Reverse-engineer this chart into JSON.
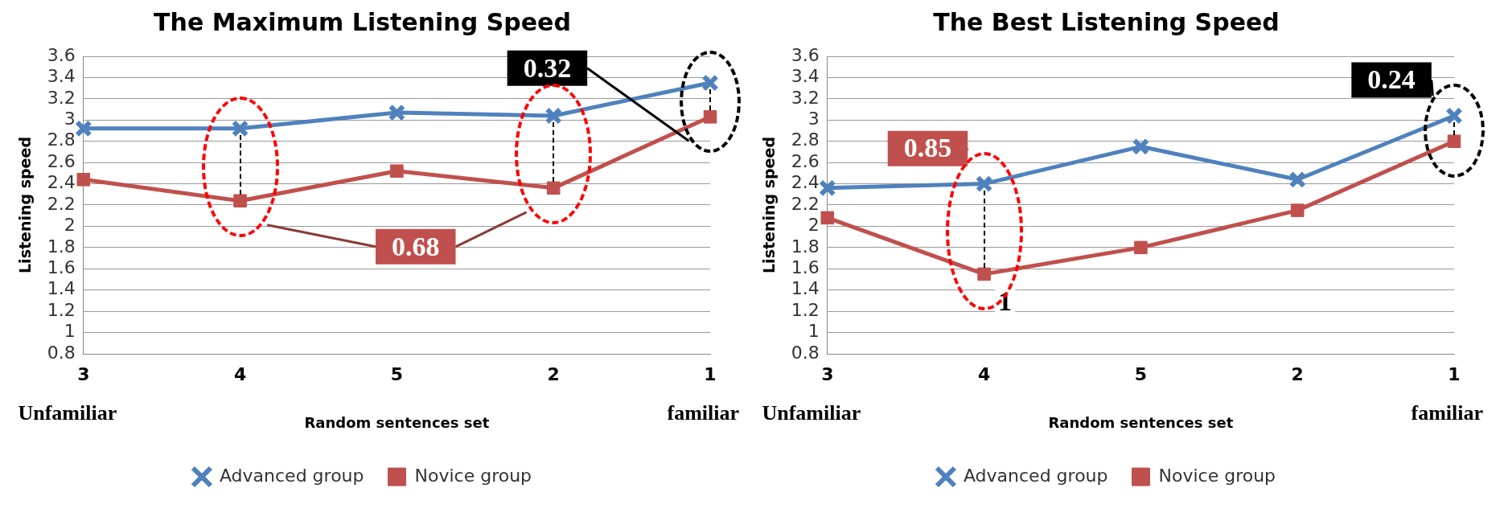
{
  "chart_data": [
    {
      "type": "line",
      "title": "The Maximum Listening Speed",
      "xlabel": "Random sentences set",
      "ylabel": "Listening speed",
      "categories": [
        "3",
        "4",
        "5",
        "2",
        "1"
      ],
      "series": [
        {
          "name": "Advanced group",
          "color": "#4f81bd",
          "marker": "cross",
          "values": [
            2.92,
            2.92,
            3.07,
            3.04,
            3.35
          ]
        },
        {
          "name": "Novice group",
          "color": "#c0504d",
          "marker": "square",
          "values": [
            2.44,
            2.24,
            2.52,
            2.36,
            3.03
          ]
        }
      ],
      "ylim": [
        0.8,
        3.6
      ],
      "yticks": [
        0.8,
        1,
        1.2,
        1.4,
        1.6,
        1.8,
        2,
        2.2,
        2.4,
        2.6,
        2.8,
        3,
        3.2,
        3.4,
        3.6
      ],
      "grid": "y",
      "legend": "bottom",
      "annotations": [
        "0.68",
        "0.32",
        "Unfamiliar",
        "familiar"
      ]
    },
    {
      "type": "line",
      "title": "The Best Listening Speed",
      "xlabel": "Random sentences set",
      "ylabel": "Listening speed",
      "categories": [
        "3",
        "4",
        "5",
        "2",
        "1"
      ],
      "series": [
        {
          "name": "Advanced group",
          "color": "#4f81bd",
          "marker": "cross",
          "values": [
            2.36,
            2.4,
            2.75,
            2.44,
            3.04
          ]
        },
        {
          "name": "Novice group",
          "color": "#c0504d",
          "marker": "square",
          "values": [
            2.08,
            1.55,
            1.8,
            2.15,
            2.8
          ]
        }
      ],
      "ylim": [
        0.8,
        3.6
      ],
      "yticks": [
        0.8,
        1,
        1.2,
        1.4,
        1.6,
        1.8,
        2,
        2.2,
        2.4,
        2.6,
        2.8,
        3,
        3.2,
        3.4,
        3.6
      ],
      "grid": "y",
      "legend": "bottom",
      "annotations": [
        "0.85",
        {
          "text": "1",
          "x": "4",
          "y": 1.55
        },
        "0.24",
        "Unfamiliar",
        "familiar"
      ]
    }
  ]
}
